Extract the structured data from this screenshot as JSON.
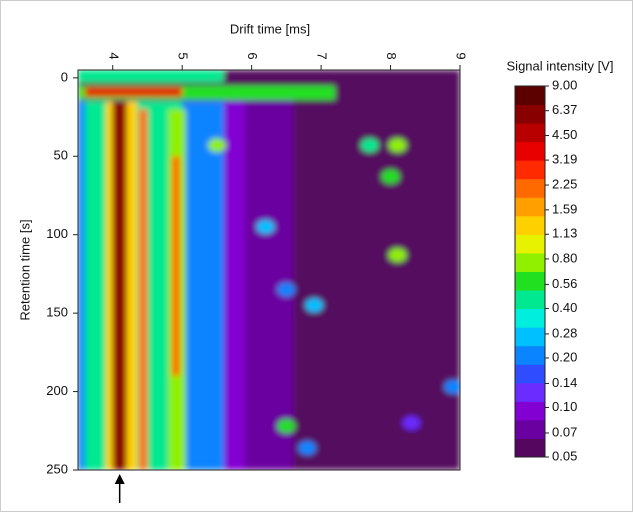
{
  "chart_data": {
    "type": "heatmap",
    "x_label": "Drift time [ms]",
    "y_label": "Retention time [s]",
    "xlim": [
      3.5,
      9
    ],
    "xticks": [
      4,
      5,
      6,
      7,
      8,
      9
    ],
    "ylim": [
      -5,
      250
    ],
    "yticks": [
      0,
      50,
      100,
      150,
      200,
      250
    ],
    "y_inverted": true,
    "regions": {
      "x0": [
        3.5,
        3.5,
        3.5,
        3.5,
        3.6,
        3.9,
        4.0,
        4.38,
        4.8,
        4.85,
        3.5,
        3.6,
        3.5
      ],
      "x1": [
        9,
        6.6,
        5.9,
        5.6,
        5.0,
        4.35,
        4.2,
        4.5,
        5.05,
        4.97,
        7.2,
        5.0,
        5.6
      ],
      "y0": [
        -5,
        10,
        15,
        15,
        15,
        15,
        15,
        20,
        20,
        50,
        5,
        6,
        -5
      ],
      "y1": [
        250,
        250,
        250,
        250,
        250,
        250,
        250,
        250,
        250,
        190,
        14,
        12,
        3
      ],
      "values": [
        0.05,
        0.07,
        0.1,
        0.2,
        0.4,
        1.13,
        6.37,
        2.25,
        0.8,
        2.25,
        0.56,
        3.19,
        0.4
      ]
    },
    "peaks": {
      "x": [
        5.5,
        7.7,
        8.1,
        8.0,
        8.1,
        6.2,
        6.5,
        6.9,
        6.5,
        6.8,
        8.9,
        8.3
      ],
      "y": [
        43,
        43,
        43,
        63,
        113,
        95,
        135,
        145,
        222,
        236,
        197,
        220
      ],
      "values": [
        0.8,
        0.4,
        0.8,
        0.56,
        0.8,
        0.28,
        0.2,
        0.28,
        0.56,
        0.2,
        0.2,
        0.14
      ]
    },
    "annotation_arrow": {
      "x": 4.1
    },
    "colorbar": {
      "title": "Signal intensity [V]",
      "lim": [
        0.05,
        9
      ],
      "log": true,
      "colors": [
        "#55075f",
        "#6a00a0",
        "#8200d2",
        "#6a2cff",
        "#2f4cff",
        "#0a84ff",
        "#00c0ff",
        "#00eedd",
        "#00e890",
        "#20e020",
        "#90f000",
        "#e6f200",
        "#ffd000",
        "#ffa000",
        "#ff6a00",
        "#ff2a00",
        "#e80000",
        "#b80000",
        "#880000",
        "#5c0000"
      ],
      "ticks": [
        {
          "value": 9,
          "label": "9.00"
        },
        {
          "value": 6.37,
          "label": "6.37"
        },
        {
          "value": 4.5,
          "label": "4.50"
        },
        {
          "value": 3.19,
          "label": "3.19"
        },
        {
          "value": 2.25,
          "label": "2.25"
        },
        {
          "value": 1.59,
          "label": "1.59"
        },
        {
          "value": 1.13,
          "label": "1.13"
        },
        {
          "value": 0.8,
          "label": "0.80"
        },
        {
          "value": 0.56,
          "label": "0.56"
        },
        {
          "value": 0.4,
          "label": "0.40"
        },
        {
          "value": 0.28,
          "label": "0.28"
        },
        {
          "value": 0.2,
          "label": "0.20"
        },
        {
          "value": 0.14,
          "label": "0.14"
        },
        {
          "value": 0.1,
          "label": "0.10"
        },
        {
          "value": 0.07,
          "label": "0.07"
        },
        {
          "value": 0.05,
          "label": "0.05"
        }
      ]
    }
  }
}
